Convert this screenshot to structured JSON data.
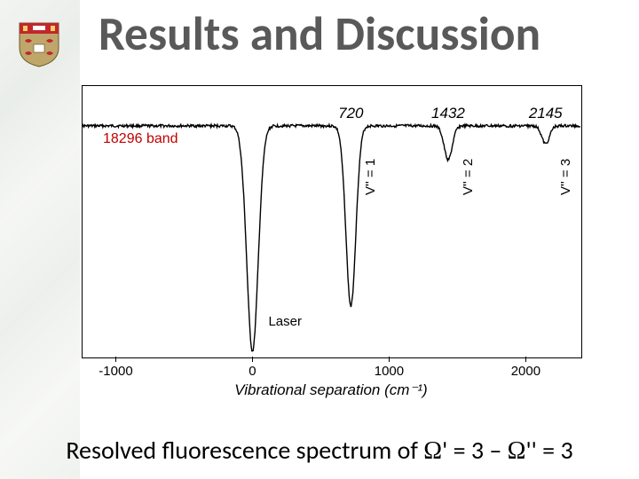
{
  "title": {
    "text": "Results and Discussion",
    "color": "#595959",
    "fontsize": 40,
    "weight": "bold"
  },
  "logo": {
    "shield_fill": "#bfa66b",
    "top_bar_fill": "#c1272d",
    "crests_fill": "#c1272d",
    "book_fill": "#ffffff"
  },
  "chart": {
    "type": "line",
    "background_color": "#ffffff",
    "border_color": "#000000",
    "xlim": [
      -1250,
      2400
    ],
    "xticks": [
      -1000,
      0,
      1000,
      2000
    ],
    "xlabel": "Vibrational separation (cm⁻¹)",
    "xlabel_fontsize": 17,
    "tick_fontsize": 15,
    "baseline_y": 0.15,
    "peaks": [
      {
        "x": 0,
        "depth": 1.0,
        "width": 42,
        "label": null
      },
      {
        "x": 720,
        "depth": 0.8,
        "width": 36,
        "label": "720"
      },
      {
        "x": 1432,
        "depth": 0.15,
        "width": 30,
        "label": "1432"
      },
      {
        "x": 2145,
        "depth": 0.08,
        "width": 28,
        "label": "2145"
      }
    ],
    "noise_amp": 0.01,
    "line_color": "#000000",
    "line_width": 1.4,
    "peak_label_fontsize": 17,
    "peak_label_style": "italic"
  },
  "annotations": {
    "band_label": {
      "text": "18296 band",
      "color": "#c00000",
      "fontsize": 16
    },
    "vprimes": [
      {
        "text": "V'' = 1",
        "fontsize": 15
      },
      {
        "text": "V'' = 2",
        "fontsize": 15
      },
      {
        "text": "V'' = 3",
        "fontsize": 15
      }
    ],
    "laser": {
      "text": "Laser",
      "fontsize": 15
    }
  },
  "caption": {
    "prefix": "Resolved fluorescence spectrum of ",
    "omega1": "Ω",
    "mid1": "' = 3 – ",
    "omega2": "Ω",
    "mid2": "'' = 3",
    "fontsize": 28,
    "color": "#000000"
  }
}
